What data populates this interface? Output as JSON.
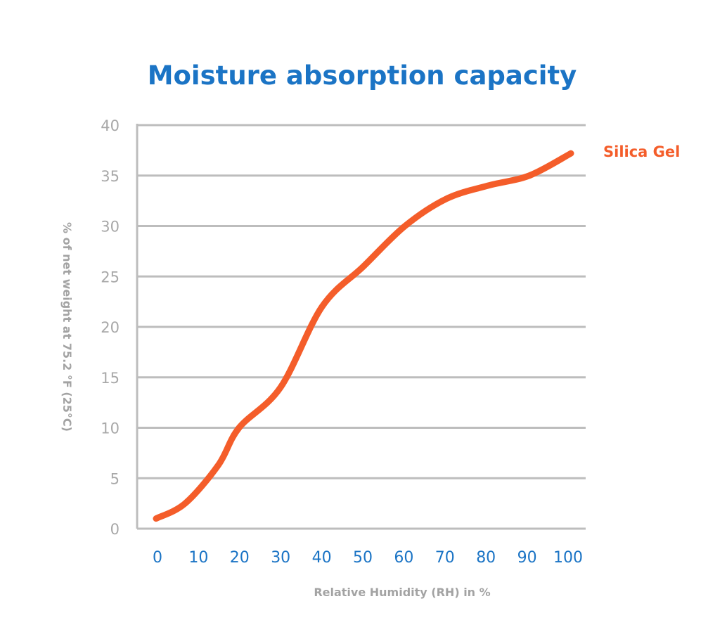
{
  "chart_data": {
    "type": "line",
    "title": "Moisture absorption capacity",
    "xlabel": "Relative Humidity (RH) in %",
    "ylabel": "% of net weight at 75.2 °F (25°C)",
    "xlim": [
      0,
      100
    ],
    "ylim": [
      0,
      40
    ],
    "x_ticks": [
      "0",
      "10",
      "20",
      "30",
      "40",
      "50",
      "60",
      "70",
      "80",
      "90",
      "100"
    ],
    "y_ticks": [
      "0",
      "5",
      "10",
      "15",
      "20",
      "25",
      "30",
      "35",
      "40"
    ],
    "grid": "horizontal",
    "legend": "right, label at line end",
    "series": [
      {
        "name": "Silica Gel",
        "color": "#f45d2a",
        "points": [
          [
            0,
            1
          ],
          [
            7,
            2.5
          ],
          [
            15,
            6.3
          ],
          [
            20,
            10
          ],
          [
            30,
            14
          ],
          [
            40,
            22
          ],
          [
            50,
            26
          ],
          [
            60,
            30
          ],
          [
            70,
            32.7
          ],
          [
            80,
            34
          ],
          [
            90,
            35
          ],
          [
            100,
            37.2
          ]
        ]
      }
    ]
  },
  "colors": {
    "title": "#1b74c5",
    "x_ticks": "#1b74c5",
    "y_ticks": "#a8a8a8",
    "grid": "#bdbdbd"
  }
}
